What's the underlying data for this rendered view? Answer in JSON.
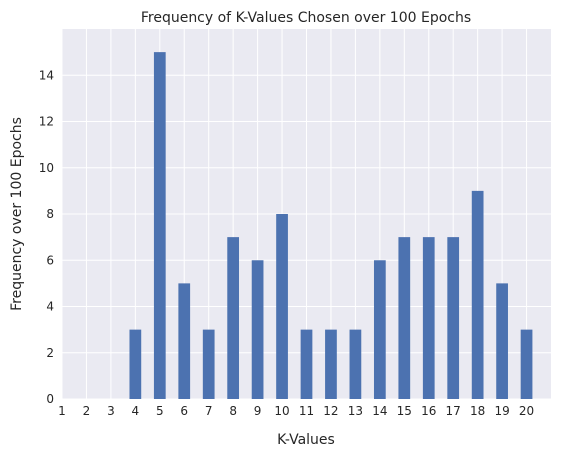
{
  "chart_data": {
    "type": "bar",
    "title": "Frequency of K-Values Chosen over 100 Epochs",
    "xlabel": "K-Values",
    "ylabel": "Frequency over 100 Epochs",
    "categories": [
      "1",
      "2",
      "3",
      "4",
      "5",
      "6",
      "7",
      "8",
      "9",
      "10",
      "11",
      "12",
      "13",
      "14",
      "15",
      "16",
      "17",
      "18",
      "19",
      "20"
    ],
    "values": [
      0,
      0,
      0,
      3,
      15,
      5,
      3,
      7,
      6,
      8,
      3,
      3,
      3,
      6,
      7,
      7,
      7,
      9,
      5,
      3
    ],
    "ylim": [
      0,
      16
    ],
    "xlim": [
      1,
      21
    ],
    "yticks": [
      0,
      2,
      4,
      6,
      8,
      10,
      12,
      14
    ],
    "grid": true,
    "style": {
      "background": "#eaeaf2",
      "bar_color": "#4c72b0",
      "grid_color": "#ffffff"
    }
  }
}
